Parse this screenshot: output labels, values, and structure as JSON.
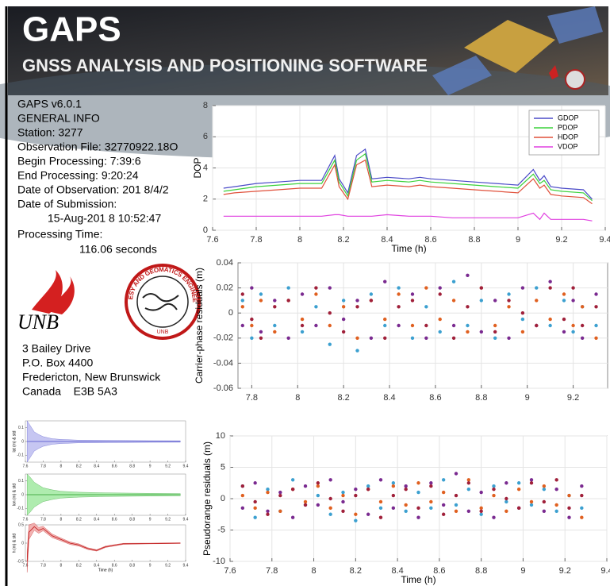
{
  "header": {
    "title": "GAPS",
    "subtitle": "GNSS ANALYSIS AND POSITIONING SOFTWARE"
  },
  "info": [
    "GAPS v6.0.1",
    "GENERAL INFO",
    "Station: 3277",
    "Observation File: 32770922.18O",
    "Begin Processing: 7:39:6",
    "End Processing: 9:20:24",
    "Date of Observation: 201 8/4/2",
    "Date of Submission:",
    "15-Aug-201 8 10:52:47",
    "Processing Time:",
    "116.06 seconds"
  ],
  "logos": {
    "unb": "UNB",
    "ring": "GEODESY AND GEOMATICS ENGINEERING",
    "ring_bottom": "UNB"
  },
  "address": [
    "3 Bailey Drive",
    "P.O. Box 4400",
    "Fredericton, New Brunswick",
    "Canada    E3B 5A3"
  ],
  "chart_data": [
    {
      "type": "line",
      "ylabel": "DOP",
      "xlabel": "Time (h)",
      "grid": true,
      "legend": "upper right",
      "xlim": [
        7.6,
        9.4
      ],
      "xticks": [
        7.6,
        7.8,
        8,
        8.2,
        8.4,
        8.6,
        8.8,
        9,
        9.2,
        9.4
      ],
      "ylim": [
        0,
        8
      ],
      "yticks": [
        0,
        2,
        4,
        6,
        8
      ],
      "x": [
        7.65,
        7.7,
        7.8,
        7.9,
        8.0,
        8.1,
        8.16,
        8.18,
        8.22,
        8.26,
        8.3,
        8.33,
        8.4,
        8.5,
        8.55,
        8.6,
        8.7,
        8.8,
        8.9,
        9.0,
        9.07,
        9.1,
        9.12,
        9.15,
        9.2,
        9.3,
        9.34
      ],
      "series": [
        {
          "name": "GDOP",
          "color": "#4b4bc8",
          "values": [
            2.7,
            2.8,
            3.0,
            3.1,
            3.2,
            3.2,
            4.8,
            3.3,
            2.4,
            4.8,
            5.2,
            3.3,
            3.4,
            3.3,
            3.4,
            3.3,
            3.2,
            3.1,
            3.0,
            2.9,
            3.9,
            3.2,
            3.5,
            2.8,
            2.7,
            2.6,
            2.0
          ]
        },
        {
          "name": "PDOP",
          "color": "#3cd23c",
          "values": [
            2.5,
            2.6,
            2.8,
            2.9,
            3.0,
            3.0,
            4.5,
            3.1,
            2.2,
            4.5,
            4.9,
            3.1,
            3.2,
            3.1,
            3.2,
            3.1,
            3.0,
            2.9,
            2.8,
            2.7,
            3.6,
            3.0,
            3.2,
            2.6,
            2.5,
            2.4,
            1.9
          ]
        },
        {
          "name": "HDOP",
          "color": "#e0503a",
          "values": [
            2.3,
            2.4,
            2.5,
            2.6,
            2.7,
            2.7,
            4.2,
            2.8,
            2.0,
            4.2,
            4.5,
            2.8,
            2.9,
            2.8,
            2.9,
            2.8,
            2.7,
            2.6,
            2.5,
            2.4,
            3.3,
            2.7,
            2.9,
            2.3,
            2.2,
            2.1,
            1.7
          ]
        },
        {
          "name": "VDOP",
          "color": "#e040e0",
          "values": [
            0.9,
            0.9,
            0.9,
            0.9,
            0.9,
            0.9,
            1.0,
            1.0,
            0.9,
            0.9,
            0.9,
            0.9,
            1.0,
            0.9,
            0.9,
            0.9,
            0.8,
            0.8,
            0.8,
            0.8,
            1.1,
            0.7,
            1.1,
            0.7,
            0.7,
            0.7,
            0.6
          ]
        }
      ]
    },
    {
      "type": "scatter",
      "ylabel": "Carrier-phase residuals (m)",
      "grid": true,
      "xlim": [
        7.74,
        9.35
      ],
      "xticks": [
        7.8,
        8,
        8.2,
        8.4,
        8.6,
        8.8,
        9,
        9.2
      ],
      "ylim": [
        -0.06,
        0.04
      ],
      "yticks": [
        -0.06,
        -0.04,
        -0.02,
        0,
        0.02,
        0.04
      ],
      "x": [
        7.76,
        7.8,
        7.84,
        7.9,
        7.96,
        8.02,
        8.08,
        8.14,
        8.2,
        8.26,
        8.32,
        8.38,
        8.44,
        8.5,
        8.56,
        8.62,
        8.68,
        8.74,
        8.8,
        8.86,
        8.92,
        8.98,
        9.04,
        9.1,
        9.16,
        9.2,
        9.24,
        9.3
      ],
      "series": [
        {
          "color": "#3ca0d0",
          "values": [
            0.01,
            -0.02,
            0.015,
            -0.01,
            0.02,
            -0.015,
            0.005,
            -0.025,
            0.01,
            -0.03,
            0.015,
            -0.01,
            0.02,
            -0.02,
            0.005,
            -0.015,
            0.025,
            -0.01,
            0.01,
            -0.02,
            0.015,
            -0.005,
            0.02,
            -0.01,
            0.01,
            -0.015,
            0.005,
            -0.01
          ]
        },
        {
          "color": "#7a2a90",
          "values": [
            -0.01,
            0.02,
            -0.015,
            0.01,
            -0.02,
            0.015,
            -0.01,
            0.02,
            -0.005,
            0.01,
            -0.02,
            0.025,
            -0.01,
            0.015,
            -0.02,
            0.02,
            -0.01,
            0.03,
            -0.015,
            0.01,
            -0.02,
            0.02,
            -0.01,
            0.025,
            -0.015,
            0.01,
            -0.02,
            0.015
          ]
        },
        {
          "color": "#e06020",
          "values": [
            0.005,
            -0.01,
            0.01,
            -0.015,
            0.01,
            -0.005,
            0.015,
            -0.01,
            0.005,
            -0.02,
            0.01,
            -0.005,
            0.015,
            -0.01,
            0.02,
            -0.005,
            0.01,
            -0.015,
            0.02,
            -0.01,
            0.005,
            -0.015,
            0.01,
            -0.005,
            0.015,
            -0.01,
            0.005,
            -0.02
          ]
        },
        {
          "color": "#a0203a",
          "values": [
            0.015,
            -0.005,
            -0.02,
            0.005,
            0.01,
            -0.01,
            0.02,
            0,
            -0.015,
            0.005,
            0.01,
            -0.02,
            0.005,
            0.01,
            -0.01,
            0.015,
            -0.02,
            0.005,
            0.02,
            -0.015,
            0.01,
            0,
            -0.01,
            0.02,
            -0.005,
            0.02,
            -0.01,
            0.005
          ]
        }
      ]
    },
    {
      "type": "scatter",
      "ylabel": "Pseudorange residuals (m)",
      "xlabel": "Time (h)",
      "grid": true,
      "xlim": [
        7.6,
        9.4
      ],
      "xticks": [
        7.6,
        7.8,
        8,
        8.2,
        8.4,
        8.6,
        8.8,
        9,
        9.2,
        9.4
      ],
      "ylim": [
        -10,
        10
      ],
      "yticks": [
        -10,
        -5,
        0,
        5,
        10
      ],
      "x": [
        7.66,
        7.72,
        7.78,
        7.84,
        7.9,
        7.96,
        8.02,
        8.08,
        8.14,
        8.2,
        8.26,
        8.32,
        8.38,
        8.44,
        8.5,
        8.56,
        8.62,
        8.68,
        8.74,
        8.8,
        8.86,
        8.92,
        8.98,
        9.04,
        9.1,
        9.16,
        9.22,
        9.28
      ],
      "series": [
        {
          "color": "#3ca0d0",
          "values": [
            2,
            -3,
            1.5,
            -2,
            3,
            -1,
            0.5,
            -2.5,
            1,
            -3.5,
            2,
            -1.5,
            2.5,
            -2,
            1,
            -1.5,
            3,
            -1,
            1.5,
            -2.5,
            2,
            -0.5,
            2.5,
            -1,
            1.5,
            -2,
            0.5,
            -1.5
          ]
        },
        {
          "color": "#7a2a90",
          "values": [
            -1.5,
            2.5,
            -2,
            1,
            -3,
            2,
            -1,
            3,
            -0.5,
            1.5,
            -2.5,
            3,
            -1.5,
            2,
            -3,
            2.5,
            -1,
            4,
            -2,
            1,
            -3,
            2.5,
            -1.5,
            3,
            -2,
            1.5,
            -3,
            2
          ]
        },
        {
          "color": "#e06020",
          "values": [
            0.5,
            -1.5,
            1,
            -2,
            1.5,
            -0.5,
            2,
            -1.5,
            0.5,
            -2.5,
            1.5,
            -0.5,
            2,
            -1,
            2.5,
            -0.5,
            1,
            -2,
            3,
            -1.5,
            0.5,
            -2,
            1.5,
            -0.5,
            2,
            -1,
            0.5,
            -3
          ]
        },
        {
          "color": "#a0203a",
          "values": [
            2,
            -0.5,
            -2.5,
            0.5,
            1.5,
            -1,
            2.5,
            0,
            -2,
            0.5,
            1.5,
            -3,
            0.5,
            1.5,
            -1.5,
            2,
            -2.5,
            0.5,
            2.5,
            -2,
            1.5,
            0,
            -1.5,
            2.5,
            -0.5,
            3,
            -1.5,
            0.5
          ]
        }
      ]
    },
    {
      "type": "line",
      "ylabel": "lat (m) & std",
      "color": "#4b4bc8",
      "band_color": "#b8b8f0",
      "xlim": [
        7.6,
        9.4
      ],
      "xticks": [
        7.6,
        7.8,
        8,
        8.2,
        8.4,
        8.6,
        8.8,
        9,
        9.2,
        9.4
      ],
      "ylim": [
        -0.15,
        0.15
      ],
      "yticks": [
        -0.1,
        0,
        0.1
      ],
      "x": [
        7.62,
        7.65,
        7.7,
        7.75,
        7.8,
        7.9,
        8.0,
        8.2,
        8.5,
        9.0,
        9.34
      ],
      "values": [
        0,
        0,
        0,
        0,
        0,
        0,
        0,
        0,
        0,
        0,
        0
      ],
      "std": [
        0.15,
        0.12,
        0.07,
        0.05,
        0.035,
        0.02,
        0.015,
        0.01,
        0.008,
        0.006,
        0.005
      ]
    },
    {
      "type": "line",
      "ylabel": "lon (m) & std",
      "color": "#2a9a2a",
      "band_color": "#9be89b",
      "xlim": [
        7.6,
        9.4
      ],
      "xticks": [
        7.6,
        7.8,
        8,
        8.2,
        8.4,
        8.6,
        8.8,
        9,
        9.2,
        9.4
      ],
      "ylim": [
        -0.15,
        0.15
      ],
      "yticks": [
        -0.1,
        0,
        0.1
      ],
      "x": [
        7.62,
        7.65,
        7.7,
        7.75,
        7.8,
        7.9,
        8.0,
        8.2,
        8.5,
        9.0,
        9.34
      ],
      "values": [
        0,
        0,
        0,
        0,
        0,
        0,
        0,
        0,
        0,
        0,
        0
      ],
      "std": [
        0.15,
        0.13,
        0.09,
        0.07,
        0.05,
        0.035,
        0.025,
        0.018,
        0.013,
        0.01,
        0.008
      ]
    },
    {
      "type": "line",
      "ylabel": "h (m) & std",
      "xlabel": "Time (h)",
      "color": "#c01818",
      "band_color": "#f0a0a0",
      "xlim": [
        7.6,
        9.4
      ],
      "xticks": [
        7.6,
        7.8,
        8,
        8.2,
        8.4,
        8.6,
        8.8,
        9,
        9.2,
        9.4
      ],
      "ylim": [
        -0.5,
        0.5
      ],
      "yticks": [
        -0.5,
        0,
        0.5
      ],
      "x": [
        7.62,
        7.64,
        7.7,
        7.75,
        7.8,
        7.9,
        8.0,
        8.1,
        8.2,
        8.3,
        8.4,
        8.5,
        8.7,
        9.0,
        9.34
      ],
      "values": [
        -0.5,
        0.3,
        0.45,
        0.35,
        0.4,
        0.2,
        0.1,
        0,
        -0.05,
        -0.15,
        -0.2,
        -0.1,
        -0.02,
        -0.01,
        0
      ],
      "std": [
        0.3,
        0.2,
        0.1,
        0.08,
        0.06,
        0.05,
        0.04,
        0.035,
        0.03,
        0.025,
        0.02,
        0.02,
        0.015,
        0.01,
        0.01
      ]
    }
  ]
}
